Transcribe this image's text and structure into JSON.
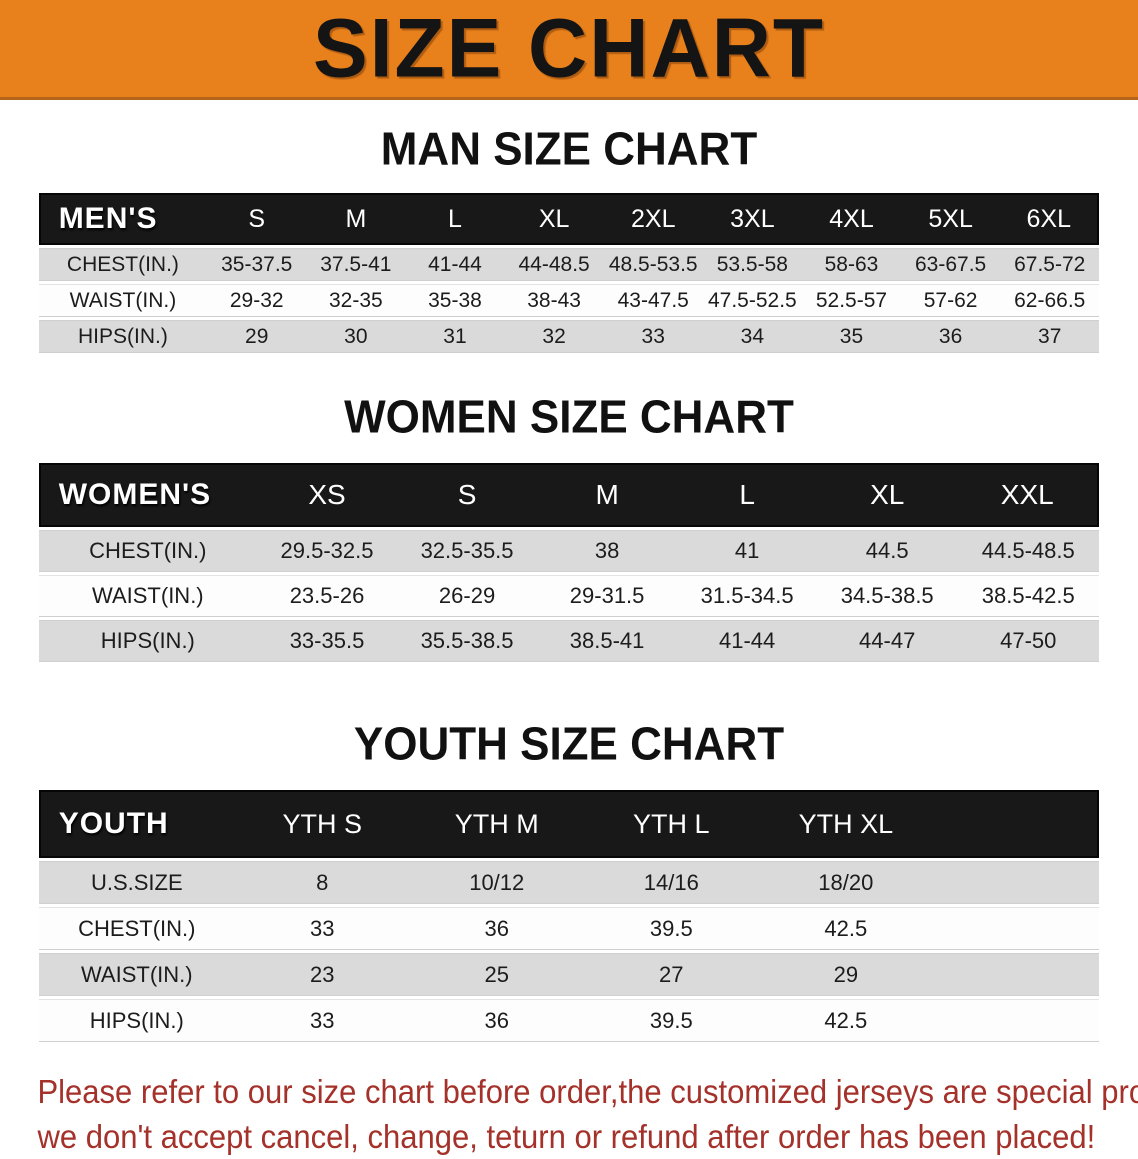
{
  "banner": {
    "title": "SIZE CHART"
  },
  "sections": [
    {
      "id": "men",
      "title": "MAN SIZE CHART",
      "header_label": "MEN'S",
      "columns": [
        "S",
        "M",
        "L",
        "XL",
        "2XL",
        "3XL",
        "4XL",
        "5XL",
        "6XL"
      ],
      "rows": [
        {
          "label": "CHEST(IN.)",
          "values": [
            "35-37.5",
            "37.5-41",
            "41-44",
            "44-48.5",
            "48.5-53.5",
            "53.5-58",
            "58-63",
            "63-67.5",
            "67.5-72"
          ]
        },
        {
          "label": "WAIST(IN.)",
          "values": [
            "29-32",
            "32-35",
            "35-38",
            "38-43",
            "43-47.5",
            "47.5-52.5",
            "52.5-57",
            "57-62",
            "62-66.5"
          ]
        },
        {
          "label": "HIPS(IN.)",
          "values": [
            "29",
            "30",
            "31",
            "32",
            "33",
            "34",
            "35",
            "36",
            "37"
          ]
        }
      ]
    },
    {
      "id": "women",
      "title": "WOMEN SIZE CHART",
      "header_label": "WOMEN'S",
      "columns": [
        "XS",
        "S",
        "M",
        "L",
        "XL",
        "XXL"
      ],
      "rows": [
        {
          "label": "CHEST(IN.)",
          "values": [
            "29.5-32.5",
            "32.5-35.5",
            "38",
            "41",
            "44.5",
            "44.5-48.5"
          ]
        },
        {
          "label": "WAIST(IN.)",
          "values": [
            "23.5-26",
            "26-29",
            "29-31.5",
            "31.5-34.5",
            "34.5-38.5",
            "38.5-42.5"
          ]
        },
        {
          "label": "HIPS(IN.)",
          "values": [
            "33-35.5",
            "35.5-38.5",
            "38.5-41",
            "41-44",
            "44-47",
            "47-50"
          ]
        }
      ]
    },
    {
      "id": "youth",
      "title": "YOUTH SIZE CHART",
      "header_label": "YOUTH",
      "columns": [
        "YTH S",
        "YTH M",
        "YTH L",
        "YTH XL"
      ],
      "rows": [
        {
          "label": "U.S.SIZE",
          "values": [
            "8",
            "10/12",
            "14/16",
            "18/20"
          ]
        },
        {
          "label": "CHEST(IN.)",
          "values": [
            "33",
            "36",
            "39.5",
            "42.5"
          ]
        },
        {
          "label": "WAIST(IN.)",
          "values": [
            "23",
            "25",
            "27",
            "29"
          ]
        },
        {
          "label": "HIPS(IN.)",
          "values": [
            "33",
            "36",
            "39.5",
            "42.5"
          ]
        }
      ]
    }
  ],
  "footer": {
    "line1": "Please refer to our size chart before order,the customized jerseys are special products,",
    "line2": "we don't accept cancel, change, teturn or refund after order has been placed!"
  },
  "colors": {
    "banner_bg": "#e8811c",
    "banner_text": "#141414",
    "table_header_bg": "#181818",
    "row_shade": "#dadada",
    "note_red": "#a4312a"
  }
}
